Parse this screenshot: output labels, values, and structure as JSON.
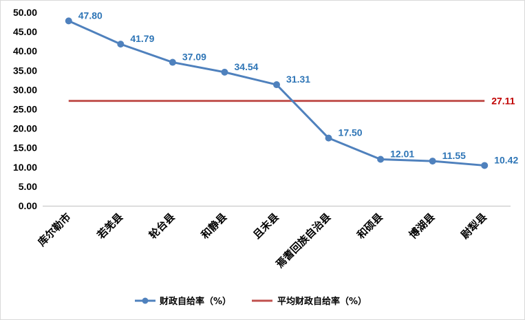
{
  "chart_data": {
    "type": "line",
    "title": "",
    "xlabel": "",
    "ylabel": "",
    "categories": [
      "库尔勒市",
      "若羌县",
      "轮台县",
      "和静县",
      "且末县",
      "焉耆回族自治县",
      "和硕县",
      "博湖县",
      "尉犁县"
    ],
    "ylim": [
      0,
      50
    ],
    "yticks": [
      "0.00",
      "5.00",
      "10.00",
      "15.00",
      "20.00",
      "25.00",
      "30.00",
      "35.00",
      "40.00",
      "45.00",
      "50.00"
    ],
    "grid": false,
    "legend_position": "bottom",
    "series": [
      {
        "name": "财政自给率（%）",
        "values": [
          47.8,
          41.79,
          37.09,
          34.54,
          31.31,
          17.5,
          12.01,
          11.55,
          10.42
        ],
        "labels": [
          "47.80",
          "41.79",
          "37.09",
          "34.54",
          "31.31",
          "17.50",
          "12.01",
          "11.55",
          "10.42"
        ],
        "color": "#4f81bd",
        "marker": "circle"
      },
      {
        "name": "平均财政自给率（%）",
        "value": 27.11,
        "label": "27.11",
        "color": "#c0504d",
        "label_color": "#c00000"
      }
    ]
  }
}
